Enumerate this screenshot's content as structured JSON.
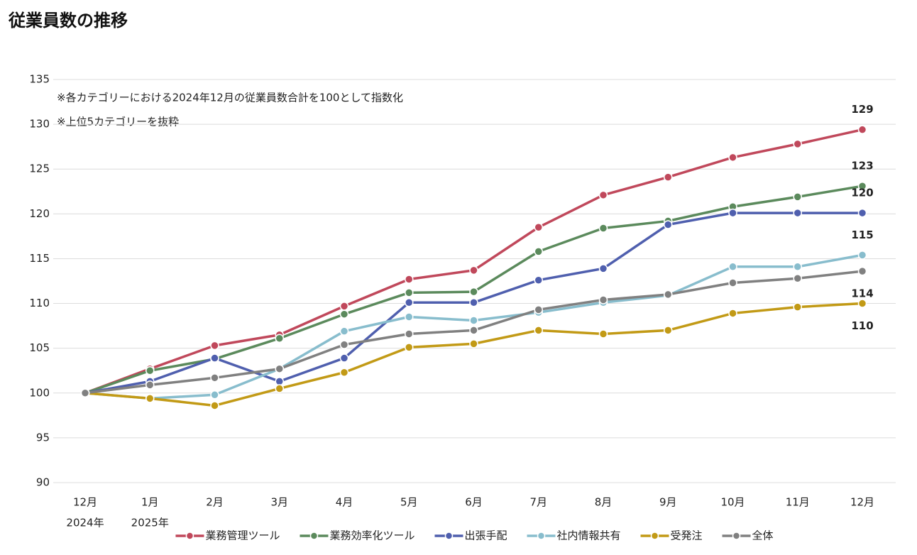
{
  "chart_data": {
    "type": "line",
    "title": "従業員数の推移",
    "annotations": [
      "※各カテゴリーにおける2024年12月の従業員数合計を100として指数化",
      "※上位5カテゴリーを抜粋"
    ],
    "categories": [
      "12月",
      "1月",
      "2月",
      "3月",
      "4月",
      "5月",
      "6月",
      "7月",
      "8月",
      "9月",
      "10月",
      "11月",
      "12月"
    ],
    "year_labels": [
      "2024年",
      "2025年"
    ],
    "ylim": [
      90,
      135
    ],
    "yticks": [
      90,
      95,
      100,
      105,
      110,
      115,
      120,
      125,
      130,
      135
    ],
    "grid": true,
    "legend": "bottom",
    "series": [
      {
        "name": "業務管理ツール",
        "color": "#c0485b",
        "label_position": "above",
        "values": [
          100,
          102.7,
          105.3,
          106.5,
          109.7,
          112.7,
          113.7,
          118.5,
          122.1,
          124.1,
          126.3,
          127.8,
          129.4
        ],
        "value_labels": [
          null,
          null,
          null,
          null,
          null,
          null,
          null,
          null,
          null,
          null,
          null,
          null,
          "129"
        ]
      },
      {
        "name": "業務効率化ツール",
        "color": "#5b8a5c",
        "label_position": "above",
        "values": [
          100,
          102.5,
          103.8,
          106.1,
          108.8,
          111.2,
          111.3,
          115.8,
          118.4,
          119.2,
          120.8,
          121.9,
          123.1
        ],
        "value_labels": [
          null,
          null,
          null,
          null,
          null,
          null,
          null,
          null,
          null,
          null,
          null,
          null,
          "123"
        ]
      },
      {
        "name": "出張手配",
        "color": "#4f5fae",
        "label_position": "above",
        "values": [
          100,
          101.3,
          103.9,
          101.3,
          103.9,
          110.1,
          110.1,
          112.6,
          113.9,
          118.8,
          120.1,
          120.1,
          120.1
        ],
        "value_labels": [
          null,
          null,
          null,
          null,
          null,
          null,
          null,
          null,
          null,
          null,
          null,
          null,
          "120"
        ]
      },
      {
        "name": "社内情報共有",
        "color": "#88bdcd",
        "label_position": "above",
        "values": [
          100,
          99.4,
          99.8,
          102.7,
          106.9,
          108.5,
          108.1,
          109.0,
          110.1,
          110.9,
          114.1,
          114.1,
          115.4
        ],
        "value_labels": [
          null,
          null,
          null,
          null,
          null,
          null,
          null,
          null,
          null,
          null,
          null,
          null,
          "115"
        ]
      },
      {
        "name": "受発注",
        "color": "#c29a16",
        "label_position": "below",
        "values": [
          100,
          99.4,
          98.6,
          100.5,
          102.3,
          105.1,
          105.5,
          107.0,
          106.6,
          107.0,
          108.9,
          109.6,
          110.0
        ],
        "value_labels": [
          null,
          null,
          null,
          null,
          null,
          null,
          null,
          null,
          null,
          null,
          null,
          null,
          "110"
        ]
      },
      {
        "name": "全体",
        "color": "#808080",
        "label_position": "below",
        "values": [
          100,
          100.9,
          101.7,
          102.7,
          105.4,
          106.6,
          107.0,
          109.3,
          110.4,
          111.0,
          112.3,
          112.8,
          113.6
        ],
        "value_labels": [
          null,
          null,
          null,
          null,
          null,
          null,
          null,
          null,
          null,
          null,
          null,
          null,
          "114"
        ]
      }
    ]
  }
}
